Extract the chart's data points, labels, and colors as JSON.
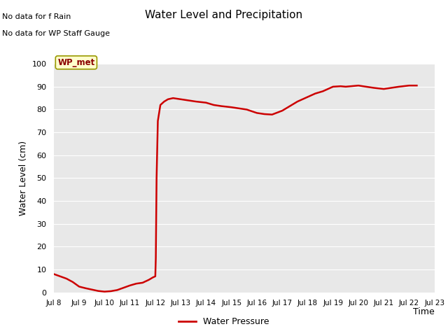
{
  "title": "Water Level and Precipitation",
  "xlabel": "Time",
  "ylabel": "Water Level (cm)",
  "ylim": [
    0,
    100
  ],
  "xlim": [
    8,
    23
  ],
  "xtick_labels": [
    "Jul 8",
    "Jul 9",
    "Jul 10",
    "Jul 11",
    "Jul 12",
    "Jul 13",
    "Jul 14",
    "Jul 15",
    "Jul 16",
    "Jul 17",
    "Jul 18",
    "Jul 19",
    "Jul 20",
    "Jul 21",
    "Jul 22",
    "Jul 23"
  ],
  "xtick_positions": [
    8,
    9,
    10,
    11,
    12,
    13,
    14,
    15,
    16,
    17,
    18,
    19,
    20,
    21,
    22,
    23
  ],
  "line_color": "#cc0000",
  "line_width": 1.8,
  "bg_color": "#e8e8e8",
  "no_data_text1": "No data for f Rain",
  "no_data_text2": "No data for WP Staff Gauge",
  "wp_met_label": "WP_met",
  "wp_met_label_color": "#8b0000",
  "wp_met_box_color": "#ffffcc",
  "wp_met_box_edge": "#999900",
  "legend_label": "Water Pressure",
  "x": [
    8.0,
    8.25,
    8.5,
    8.75,
    9.0,
    9.25,
    9.5,
    9.75,
    10.0,
    10.25,
    10.5,
    10.75,
    11.0,
    11.25,
    11.5,
    11.75,
    11.9,
    12.0,
    12.02,
    12.05,
    12.1,
    12.2,
    12.35,
    12.5,
    12.7,
    13.0,
    13.3,
    13.6,
    14.0,
    14.3,
    14.6,
    15.0,
    15.3,
    15.6,
    16.0,
    16.3,
    16.6,
    17.0,
    17.3,
    17.6,
    18.0,
    18.3,
    18.6,
    19.0,
    19.3,
    19.5,
    19.8,
    20.0,
    20.3,
    20.6,
    21.0,
    21.3,
    21.6,
    22.0,
    22.3
  ],
  "y": [
    8.0,
    7.0,
    6.0,
    4.5,
    2.5,
    1.8,
    1.2,
    0.6,
    0.3,
    0.5,
    1.0,
    2.0,
    3.0,
    3.8,
    4.2,
    5.5,
    6.5,
    7.0,
    15.0,
    50.0,
    75.0,
    82.0,
    83.5,
    84.5,
    85.0,
    84.5,
    84.0,
    83.5,
    83.0,
    82.0,
    81.5,
    81.0,
    80.5,
    80.0,
    78.5,
    78.0,
    77.8,
    79.5,
    81.5,
    83.5,
    85.5,
    87.0,
    88.0,
    90.0,
    90.2,
    90.0,
    90.3,
    90.5,
    90.0,
    89.5,
    89.0,
    89.5,
    90.0,
    90.5,
    90.5
  ]
}
